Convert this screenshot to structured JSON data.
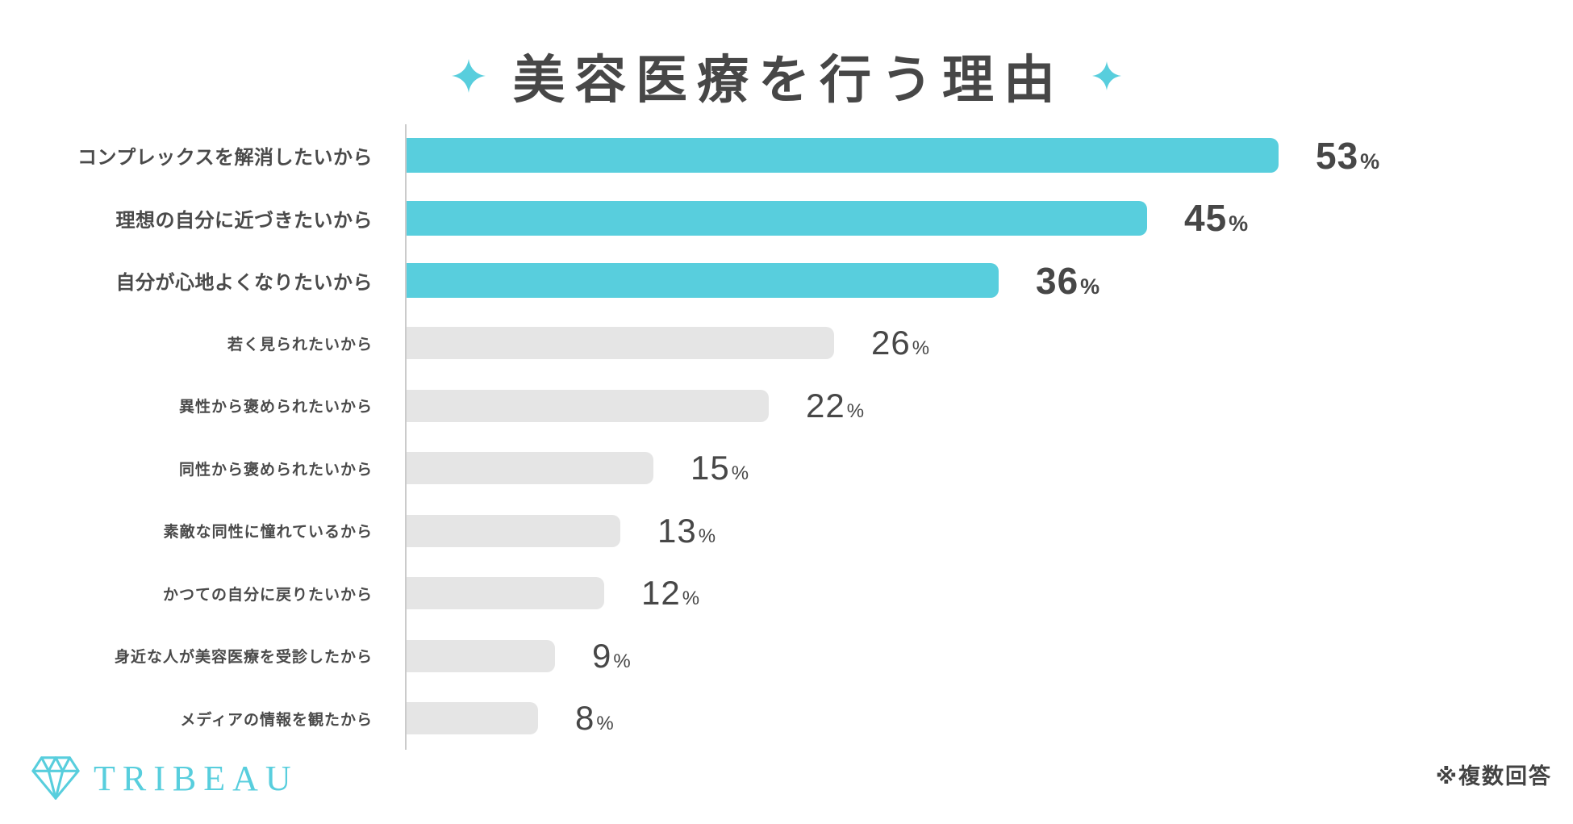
{
  "header": {
    "title": "美容医療を行う理由",
    "left_icon": "sparkle-icon",
    "right_icon": "sparkle-icon"
  },
  "footer": {
    "logo_brand": "TRIBEAU",
    "logo_icon": "diamond-icon",
    "note": "※複数回答"
  },
  "colors": {
    "accent_teal": "#58CEDD",
    "bar_gray": "#E5E5E5",
    "text_dark": "#4A4A4A",
    "axis_line": "#CBCBCB"
  },
  "chart_data": {
    "type": "bar",
    "orientation": "horizontal",
    "title": "美容医療を行う理由",
    "xlabel": "",
    "ylabel": "",
    "unit": "%",
    "xlim": [
      0,
      60
    ],
    "grid": false,
    "legend": false,
    "categories": [
      "コンプレックスを解消したいから",
      "理想の自分に近づきたいから",
      "自分が心地よくなりたいから",
      "若く見られたいから",
      "異性から褒められたいから",
      "同性から褒められたいから",
      "素敵な同性に憧れているから",
      "かつての自分に戻りたいから",
      "身近な人が美容医療を受診したから",
      "メディアの情報を観たから"
    ],
    "values": [
      53,
      45,
      36,
      26,
      22,
      15,
      13,
      12,
      9,
      8
    ],
    "rows": [
      {
        "label": "コンプレックスを解消したいから",
        "value": 53,
        "highlighted": true
      },
      {
        "label": "理想の自分に近づきたいから",
        "value": 45,
        "highlighted": true
      },
      {
        "label": "自分が心地よくなりたいから",
        "value": 36,
        "highlighted": true
      },
      {
        "label": "若く見られたいから",
        "value": 26,
        "highlighted": false
      },
      {
        "label": "異性から褒められたいから",
        "value": 22,
        "highlighted": false
      },
      {
        "label": "同性から褒められたいから",
        "value": 15,
        "highlighted": false
      },
      {
        "label": "素敵な同性に憧れているから",
        "value": 13,
        "highlighted": false
      },
      {
        "label": "かつての自分に戻りたいから",
        "value": 12,
        "highlighted": false
      },
      {
        "label": "身近な人が美容医療を受診したから",
        "value": 9,
        "highlighted": false
      },
      {
        "label": "メディアの情報を観たから",
        "value": 8,
        "highlighted": false
      }
    ]
  }
}
